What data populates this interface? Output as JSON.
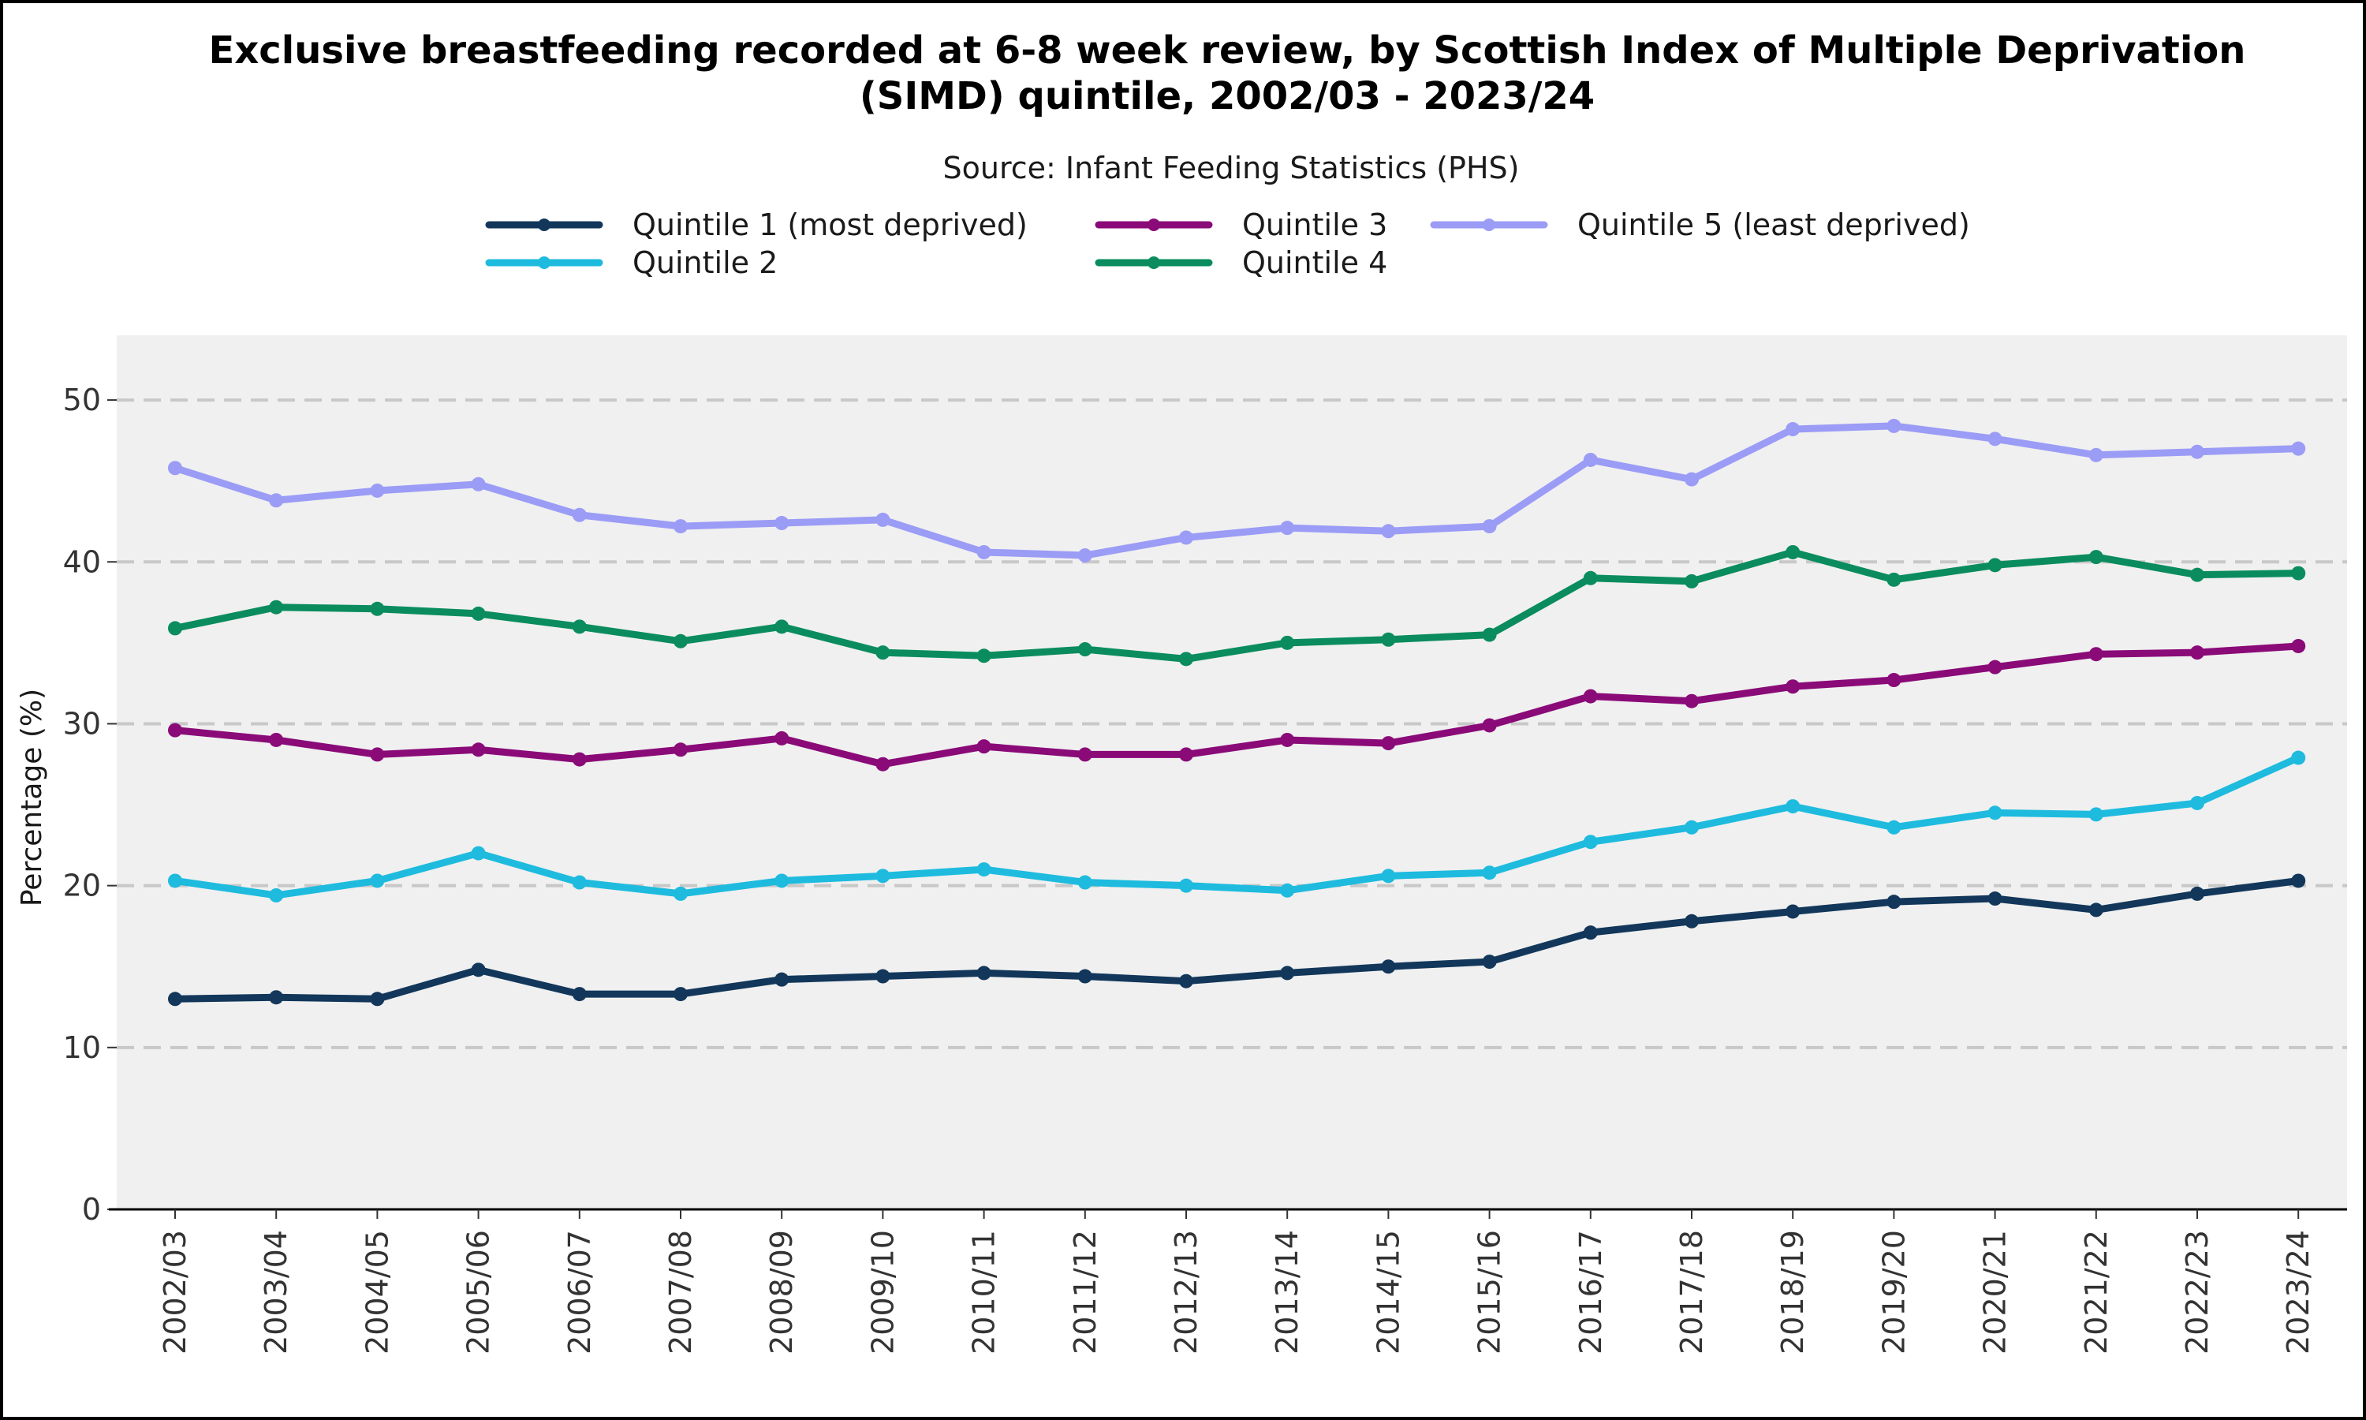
{
  "chart_data": {
    "type": "line",
    "title_line1": "Exclusive breastfeeding recorded at 6-8 week review, by Scottish Index of Multiple Deprivation",
    "title_line2": "(SIMD) quintile, 2002/03 - 2023/24",
    "subtitle": "Source: Infant Feeding Statistics (PHS)",
    "ylabel": "Percentage  (%)",
    "xlabel": "",
    "ylim": [
      0,
      54
    ],
    "yticks": [
      0,
      10,
      20,
      30,
      40,
      50
    ],
    "grid": "horizontal dashed",
    "legend_position": "top",
    "categories": [
      "2002/03",
      "2003/04",
      "2004/05",
      "2005/06",
      "2006/07",
      "2007/08",
      "2008/09",
      "2009/10",
      "2010/11",
      "2011/12",
      "2012/13",
      "2013/14",
      "2014/15",
      "2015/16",
      "2016/17",
      "2017/18",
      "2018/19",
      "2019/20",
      "2020/21",
      "2021/22",
      "2022/23",
      "2023/24"
    ],
    "series": [
      {
        "name": "Quintile 1 (most deprived)",
        "color": "#12375a",
        "values": [
          13.0,
          13.1,
          13.0,
          14.8,
          13.3,
          13.3,
          14.2,
          14.4,
          14.6,
          14.4,
          14.1,
          14.6,
          15.0,
          15.3,
          17.1,
          17.8,
          18.4,
          19.0,
          19.2,
          18.5,
          19.5,
          20.3
        ]
      },
      {
        "name": "Quintile 2",
        "color": "#1ebbde",
        "values": [
          20.3,
          19.4,
          20.3,
          22.0,
          20.2,
          19.5,
          20.3,
          20.6,
          21.0,
          20.2,
          20.0,
          19.7,
          20.6,
          20.8,
          22.7,
          23.6,
          24.9,
          23.6,
          24.5,
          24.4,
          25.1,
          27.9
        ]
      },
      {
        "name": "Quintile 3",
        "color": "#8a0a78",
        "values": [
          29.6,
          29.0,
          28.1,
          28.4,
          27.8,
          28.4,
          29.1,
          27.5,
          28.6,
          28.1,
          28.1,
          29.0,
          28.8,
          29.9,
          31.7,
          31.4,
          32.3,
          32.7,
          33.5,
          34.3,
          34.4,
          34.8
        ]
      },
      {
        "name": "Quintile 4",
        "color": "#0a8c5e",
        "values": [
          35.9,
          37.2,
          37.1,
          36.8,
          36.0,
          35.1,
          36.0,
          34.4,
          34.2,
          34.6,
          34.0,
          35.0,
          35.2,
          35.5,
          39.0,
          38.8,
          40.6,
          38.9,
          39.8,
          40.3,
          39.2,
          39.3
        ]
      },
      {
        "name": "Quintile 5 (least deprived)",
        "color": "#9b9cf6",
        "values": [
          45.8,
          43.8,
          44.4,
          44.8,
          42.9,
          42.2,
          42.4,
          42.6,
          40.6,
          40.4,
          41.5,
          42.1,
          41.9,
          42.2,
          46.3,
          45.1,
          48.2,
          48.4,
          47.6,
          46.6,
          46.8,
          47.0
        ]
      }
    ]
  }
}
